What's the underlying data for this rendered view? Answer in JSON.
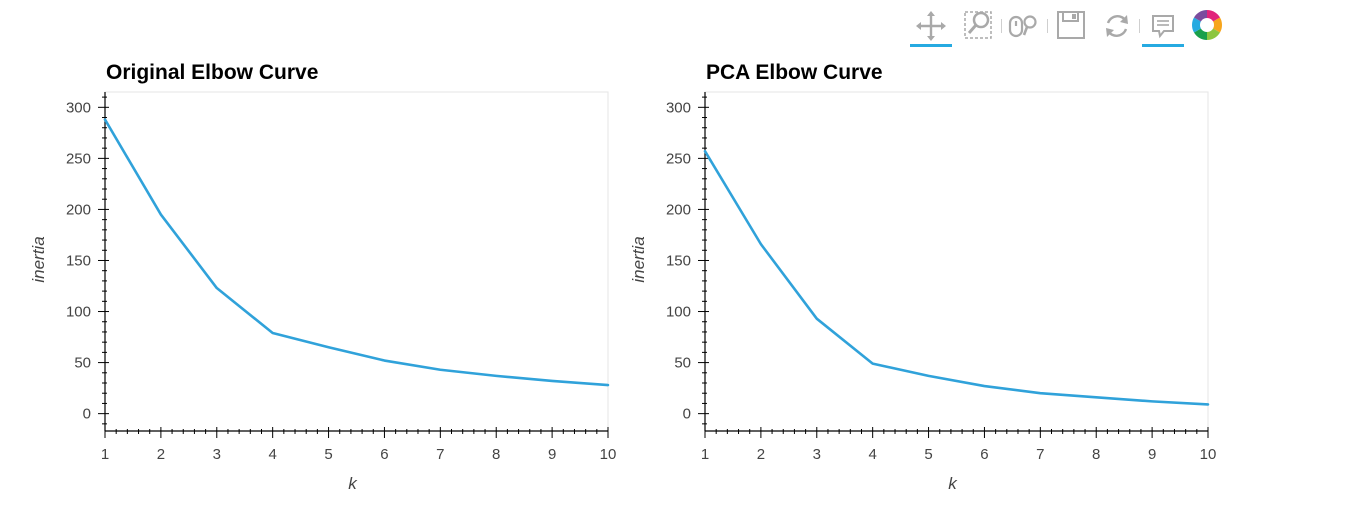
{
  "toolbar": {
    "tools": [
      {
        "name": "pan",
        "active": true
      },
      {
        "name": "box-zoom",
        "active": false
      },
      {
        "name": "wheel-zoom",
        "active": false
      },
      {
        "name": "save",
        "active": false
      },
      {
        "name": "reset",
        "active": false
      },
      {
        "name": "hover",
        "active": true
      },
      {
        "name": "bokeh-logo",
        "active": false
      }
    ],
    "colors": {
      "icon": "#a9a9a9",
      "active": "#26aae1"
    }
  },
  "chart_data": [
    {
      "type": "line",
      "title": "Original Elbow Curve",
      "xlabel": "k",
      "ylabel": "inertia",
      "x": [
        1,
        2,
        3,
        4,
        5,
        6,
        7,
        8,
        9,
        10
      ],
      "series": [
        {
          "values": [
            288,
            195,
            123,
            79,
            65,
            52,
            43,
            37,
            32,
            28
          ],
          "color": "#30a2da"
        }
      ],
      "xlim": [
        1,
        10
      ],
      "ylim": [
        -17,
        315
      ],
      "xticks": [
        1,
        2,
        3,
        4,
        5,
        6,
        7,
        8,
        9,
        10
      ],
      "yticks": [
        0,
        50,
        100,
        150,
        200,
        250,
        300
      ],
      "grid": false
    },
    {
      "type": "line",
      "title": "PCA Elbow Curve",
      "xlabel": "k",
      "ylabel": "inertia",
      "x": [
        1,
        2,
        3,
        4,
        5,
        6,
        7,
        8,
        9,
        10
      ],
      "series": [
        {
          "values": [
            257,
            166,
            93,
            49,
            37,
            27,
            20,
            16,
            12,
            9
          ],
          "color": "#30a2da"
        }
      ],
      "xlim": [
        1,
        10
      ],
      "ylim": [
        -17,
        315
      ],
      "xticks": [
        1,
        2,
        3,
        4,
        5,
        6,
        7,
        8,
        9,
        10
      ],
      "yticks": [
        0,
        50,
        100,
        150,
        200,
        250,
        300
      ],
      "grid": false
    }
  ]
}
